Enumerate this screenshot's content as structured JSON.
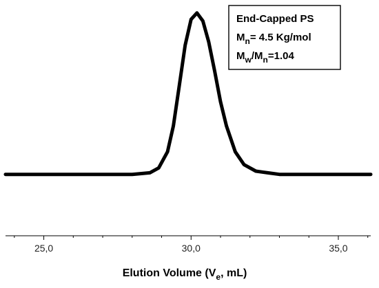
{
  "chart_data": {
    "type": "line",
    "title": "",
    "xlabel": "Elution Volume (Ve, mL)",
    "xlabel_parts": {
      "prefix": "Elution Volume (V",
      "sub": "e",
      "suffix": ", mL)"
    },
    "ylabel": "",
    "xlim": [
      23.7,
      36.1
    ],
    "ylim": [
      -0.38,
      1.08
    ],
    "x_ticks": [
      25.0,
      30.0,
      35.0
    ],
    "x_tick_labels": [
      "25,0",
      "30,0",
      "35,0"
    ],
    "grid": false,
    "line_color": "#000000",
    "series": [
      {
        "x": [
          23.7,
          25.0,
          26.0,
          27.0,
          28.0,
          28.6,
          28.9,
          29.2,
          29.4,
          29.6,
          29.8,
          30.0,
          30.2,
          30.4,
          30.6,
          30.8,
          31.0,
          31.2,
          31.5,
          31.8,
          32.2,
          32.6,
          33.0,
          34.0,
          35.0,
          36.1
        ],
        "y": [
          0.0,
          0.0,
          0.0,
          0.0,
          0.0,
          0.01,
          0.04,
          0.14,
          0.3,
          0.55,
          0.8,
          0.96,
          1.0,
          0.95,
          0.82,
          0.64,
          0.45,
          0.3,
          0.14,
          0.06,
          0.02,
          0.01,
          0.0,
          0.0,
          0.0,
          0.0
        ]
      }
    ],
    "legend_box": {
      "position": "top-right",
      "lines": [
        {
          "text": "End-Capped PS"
        },
        {
          "main": "M",
          "sub": "n",
          "rest": "= 4.5 Kg/mol"
        },
        {
          "main": "M",
          "sub": "w",
          "mid": "/M",
          "sub2": "n",
          "rest": "=1.04"
        }
      ]
    }
  }
}
